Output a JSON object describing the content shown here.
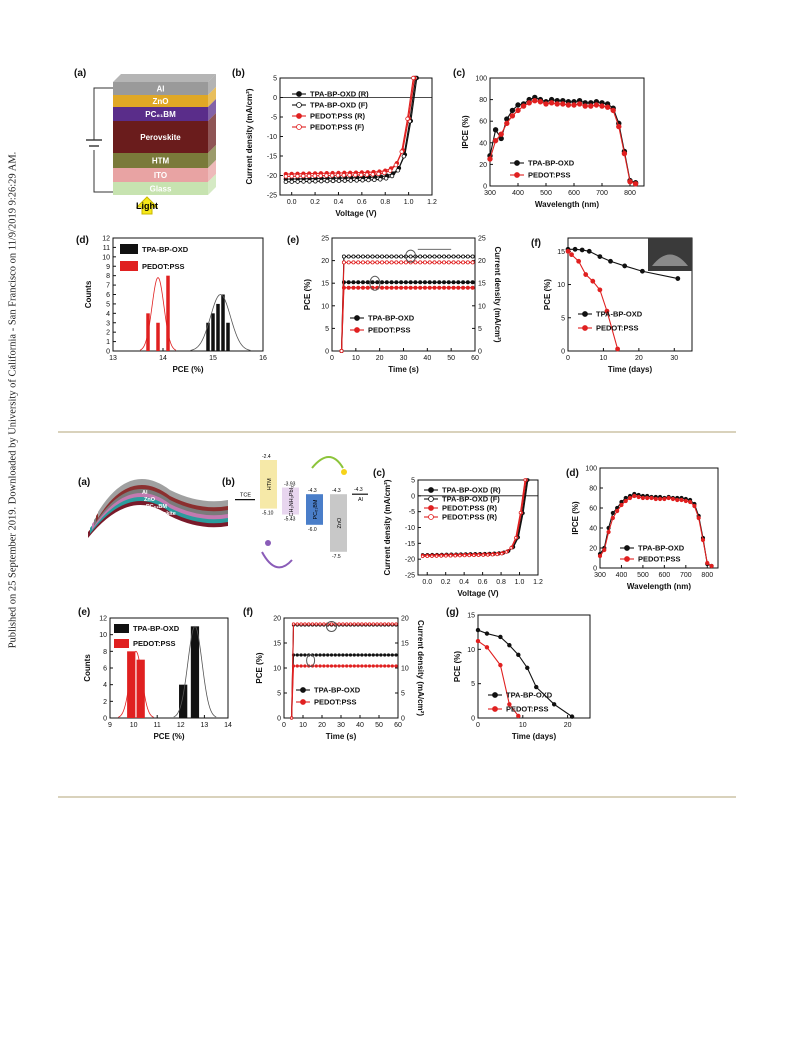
{
  "sidebar_text": "Published on 25 September 2019. Downloaded by University of California - San Francisco on 11/9/2019 9:26:29 AM.",
  "fig1": {
    "a": {
      "label": "(a)",
      "layers": [
        {
          "name": "Al",
          "color": "#9a9a9a"
        },
        {
          "name": "ZnO",
          "color": "#e0a826"
        },
        {
          "name": "PC61BM",
          "color": "#5a2d8a"
        },
        {
          "name": "Perovskite",
          "color": "#6a1c1c"
        },
        {
          "name": "HTM",
          "color": "#7a7a3a"
        },
        {
          "name": "ITO",
          "color": "#e8a3a3"
        },
        {
          "name": "Glass",
          "color": "#c7e3b0"
        }
      ],
      "light": "Light"
    },
    "b": {
      "label": "(b)",
      "chart_data": {
        "type": "line",
        "xlabel": "Voltage (V)",
        "ylabel": "Current density (mA/cm²)",
        "xlim": [
          -0.1,
          1.2
        ],
        "ylim": [
          -25,
          5
        ],
        "xticks": [
          "0.0",
          "0.2",
          "0.4",
          "0.6",
          "0.8",
          "1.0",
          "1.2"
        ],
        "yticks": [
          "5",
          "0",
          "-5",
          "-10",
          "-15",
          "-20",
          "-25"
        ],
        "series": [
          {
            "name": "TPA-BP-OXD (R)",
            "color": "#111111",
            "hollow": false,
            "jsc": 20.9,
            "voc": 1.04
          },
          {
            "name": "TPA-BP-OXD (F)",
            "color": "#111111",
            "hollow": true,
            "jsc": 21.6,
            "voc": 1.03
          },
          {
            "name": "PEDOT:PSS (R)",
            "color": "#e02020",
            "hollow": false,
            "jsc": 19.6,
            "voc": 1.02
          },
          {
            "name": "PEDOT:PSS (F)",
            "color": "#e02020",
            "hollow": true,
            "jsc": 20.2,
            "voc": 1.01
          }
        ]
      }
    },
    "c": {
      "label": "(c)",
      "chart_data": {
        "type": "line",
        "xlabel": "Wavelength (nm)",
        "ylabel": "IPCE (%)",
        "xlim": [
          300,
          850
        ],
        "ylim": [
          0,
          100
        ],
        "xticks": [
          "300",
          "400",
          "500",
          "600",
          "700",
          "800"
        ],
        "yticks": [
          "0",
          "20",
          "40",
          "60",
          "80",
          "100"
        ],
        "series": [
          {
            "name": "TPA-BP-OXD",
            "color": "#111111",
            "x": [
              300,
              320,
              340,
              360,
              380,
              400,
              420,
              440,
              460,
              480,
              500,
              520,
              540,
              560,
              580,
              600,
              620,
              640,
              660,
              680,
              700,
              720,
              740,
              760,
              780,
              800,
              820
            ],
            "y": [
              28,
              52,
              44,
              62,
              70,
              75,
              76,
              80,
              82,
              80,
              78,
              80,
              79,
              79,
              78,
              78,
              79,
              77,
              77,
              78,
              77,
              76,
              72,
              58,
              32,
              5,
              3
            ]
          },
          {
            "name": "PEDOT:PSS",
            "color": "#e02020",
            "x": [
              300,
              320,
              340,
              360,
              380,
              400,
              420,
              440,
              460,
              480,
              500,
              520,
              540,
              560,
              580,
              600,
              620,
              640,
              660,
              680,
              700,
              720,
              740,
              760,
              780,
              800,
              820
            ],
            "y": [
              25,
              42,
              48,
              58,
              65,
              70,
              74,
              77,
              79,
              78,
              76,
              77,
              76,
              76,
              75,
              75,
              76,
              74,
              74,
              75,
              74,
              73,
              70,
              55,
              30,
              4,
              2
            ]
          }
        ]
      }
    },
    "d": {
      "label": "(d)",
      "chart_data": {
        "type": "bar",
        "xlabel": "PCE (%)",
        "ylabel": "Counts",
        "xlim": [
          13,
          16
        ],
        "ylim": [
          0,
          12
        ],
        "xticks": [
          "13",
          "14",
          "15",
          "16"
        ],
        "yticks": [
          "0",
          "1",
          "2",
          "3",
          "4",
          "5",
          "6",
          "7",
          "8",
          "9",
          "10",
          "11",
          "12"
        ],
        "series": [
          {
            "name": "TPA-BP-OXD",
            "color": "#111111",
            "x": [
              14.9,
              15.0,
              15.1,
              15.2,
              15.3
            ],
            "values": [
              3,
              4,
              5,
              6,
              3
            ]
          },
          {
            "name": "PEDOT:PSS",
            "color": "#e02020",
            "x": [
              13.7,
              13.9,
              14.1
            ],
            "values": [
              4,
              3,
              8
            ]
          }
        ]
      }
    },
    "e": {
      "label": "(e)",
      "chart_data": {
        "type": "line",
        "xlabel": "Time (s)",
        "ylabel": "PCE (%)",
        "y2label": "Current density (mA/cm²)",
        "xlim": [
          0,
          60
        ],
        "ylim": [
          0,
          25
        ],
        "xticks": [
          "0",
          "10",
          "20",
          "30",
          "40",
          "50",
          "60"
        ],
        "yticks": [
          "0",
          "5",
          "10",
          "15",
          "20",
          "25"
        ],
        "series": [
          {
            "name": "TPA-BP-OXD",
            "color": "#111111",
            "pce": 15.2,
            "jsc": 20.9
          },
          {
            "name": "PEDOT:PSS",
            "color": "#e02020",
            "pce": 14.0,
            "jsc": 19.6
          }
        ]
      }
    },
    "f": {
      "label": "(f)",
      "chart_data": {
        "type": "line",
        "xlabel": "Time (days)",
        "ylabel": "PCE (%)",
        "xlim": [
          0,
          35
        ],
        "ylim": [
          0,
          17
        ],
        "xticks": [
          "0",
          "10",
          "20",
          "30"
        ],
        "yticks": [
          "0",
          "5",
          "10",
          "15"
        ],
        "series": [
          {
            "name": "TPA-BP-OXD",
            "color": "#111111",
            "x": [
              0,
              2,
              4,
              6,
              9,
              12,
              16,
              21,
              31
            ],
            "y": [
              15.3,
              15.3,
              15.2,
              15.0,
              14.2,
              13.5,
              12.8,
              12.0,
              10.9
            ]
          },
          {
            "name": "PEDOT:PSS",
            "color": "#e02020",
            "x": [
              0,
              1,
              3,
              5,
              7,
              9,
              11,
              14
            ],
            "y": [
              15.0,
              14.5,
              13.5,
              11.5,
              10.5,
              9.2,
              6.0,
              0.3
            ]
          }
        ]
      }
    }
  },
  "fig2": {
    "a": {
      "label": "(a)",
      "layers": [
        "Al",
        "ZnO",
        "PC61BM",
        "Perovskite",
        "HTM",
        "ITO/PET"
      ]
    },
    "b": {
      "label": "(b)",
      "levels": [
        {
          "name": "TCE",
          "value": ""
        },
        {
          "name": "HTM",
          "top": "-2.4",
          "bottom": "-5.10",
          "color": "#f6e9a8"
        },
        {
          "name": "CH3NH3PbI3",
          "top": "-3.93",
          "bottom": "-5.43",
          "color": "#e8d6ef"
        },
        {
          "name": "PC61BM",
          "top": "-4.3",
          "bottom": "-6.0",
          "color": "#4a7ec9"
        },
        {
          "name": "ZnO",
          "top": "-4.3",
          "bottom": "-7.5",
          "color": "#c8c8c8"
        },
        {
          "name": "Al",
          "top": "-4.3",
          "bottom": ""
        }
      ]
    },
    "c": {
      "label": "(c)",
      "chart_data": {
        "type": "line",
        "xlabel": "Voltage (V)",
        "ylabel": "Current density (mA/cm²)",
        "xlim": [
          -0.1,
          1.2
        ],
        "ylim": [
          -25,
          5
        ],
        "xticks": [
          "0.0",
          "0.2",
          "0.4",
          "0.6",
          "0.8",
          "1.0",
          "1.2"
        ],
        "yticks": [
          "5",
          "0",
          "-5",
          "-10",
          "-15",
          "-20",
          "-25"
        ],
        "series": [
          {
            "name": "TPA-BP-OXD (R)",
            "color": "#111111",
            "hollow": false,
            "jsc": 18.6,
            "voc": 1.06
          },
          {
            "name": "TPA-BP-OXD (F)",
            "color": "#111111",
            "hollow": true,
            "jsc": 18.9,
            "voc": 1.05
          },
          {
            "name": "PEDOT:PSS (R)",
            "color": "#e02020",
            "hollow": false,
            "jsc": 18.8,
            "voc": 1.04
          },
          {
            "name": "PEDOT:PSS (R)",
            "color": "#e02020",
            "hollow": true,
            "jsc": 19.1,
            "voc": 1.03
          }
        ]
      }
    },
    "d": {
      "label": "(d)",
      "chart_data": {
        "type": "line",
        "xlabel": "Wavelength (nm)",
        "ylabel": "IPCE (%)",
        "xlim": [
          300,
          850
        ],
        "ylim": [
          0,
          100
        ],
        "xticks": [
          "300",
          "400",
          "500",
          "600",
          "700",
          "800"
        ],
        "yticks": [
          "0",
          "20",
          "40",
          "60",
          "80",
          "100"
        ],
        "series": [
          {
            "name": "TPA-BP-OXD",
            "color": "#111111",
            "x": [
              300,
              320,
              340,
              360,
              380,
              400,
              420,
              440,
              460,
              480,
              500,
              520,
              540,
              560,
              580,
              600,
              620,
              640,
              660,
              680,
              700,
              720,
              740,
              760,
              780,
              800,
              820
            ],
            "y": [
              14,
              20,
              40,
              55,
              60,
              66,
              70,
              72,
              74,
              73,
              72,
              72,
              71,
              71,
              71,
              70,
              71,
              70,
              70,
              70,
              69,
              68,
              64,
              52,
              30,
              4,
              2
            ]
          },
          {
            "name": "PEDOT:PSS",
            "color": "#e02020",
            "x": [
              300,
              320,
              340,
              360,
              380,
              400,
              420,
              440,
              460,
              480,
              500,
              520,
              540,
              560,
              580,
              600,
              620,
              640,
              660,
              680,
              700,
              720,
              740,
              760,
              780,
              800,
              820
            ],
            "y": [
              12,
              18,
              36,
              50,
              57,
              63,
              67,
              70,
              72,
              71,
              70,
              70,
              70,
              69,
              69,
              69,
              70,
              69,
              68,
              68,
              67,
              66,
              62,
              50,
              28,
              5,
              2
            ]
          }
        ]
      }
    },
    "e": {
      "label": "(e)",
      "chart_data": {
        "type": "bar",
        "xlabel": "PCE (%)",
        "ylabel": "Counts",
        "xlim": [
          9,
          14
        ],
        "ylim": [
          0,
          12
        ],
        "xticks": [
          "9",
          "10",
          "11",
          "12",
          "13",
          "14"
        ],
        "yticks": [
          "0",
          "2",
          "4",
          "6",
          "8",
          "10",
          "12"
        ],
        "series": [
          {
            "name": "TPA-BP-OXD",
            "color": "#111111",
            "x": [
              12.1,
              12.6
            ],
            "values": [
              4,
              11
            ]
          },
          {
            "name": "PEDOT:PSS",
            "color": "#e02020",
            "x": [
              9.9,
              10.3
            ],
            "values": [
              8,
              7
            ]
          }
        ]
      }
    },
    "f": {
      "label": "(f)",
      "chart_data": {
        "type": "line",
        "xlabel": "Time (s)",
        "ylabel": "PCE (%)",
        "y2label": "Current density (mA/cm²)",
        "xlim": [
          0,
          60
        ],
        "ylim": [
          0,
          20
        ],
        "xticks": [
          "0",
          "10",
          "20",
          "30",
          "40",
          "50",
          "60"
        ],
        "yticks": [
          "0",
          "5",
          "10",
          "15",
          "20"
        ],
        "series": [
          {
            "name": "TPA-BP-OXD",
            "color": "#111111",
            "pce": 12.6,
            "jsc": 18.6
          },
          {
            "name": "PEDOT:PSS",
            "color": "#e02020",
            "pce": 10.4,
            "jsc": 18.8
          }
        ]
      }
    },
    "g": {
      "label": "(g)",
      "chart_data": {
        "type": "line",
        "xlabel": "Time (days)",
        "ylabel": "PCE (%)",
        "xlim": [
          0,
          25
        ],
        "ylim": [
          0,
          15
        ],
        "xticks": [
          "0",
          "10",
          "20"
        ],
        "yticks": [
          "0",
          "5",
          "10",
          "15"
        ],
        "series": [
          {
            "name": "TPA-BP-OXD",
            "color": "#111111",
            "x": [
              0,
              2,
              5,
              7,
              9,
              11,
              13,
              17,
              21
            ],
            "y": [
              12.8,
              12.3,
              11.8,
              10.6,
              9.2,
              7.3,
              4.5,
              2.0,
              0.2
            ]
          },
          {
            "name": "PEDOT:PSS",
            "color": "#e02020",
            "x": [
              0,
              2,
              5,
              7,
              9
            ],
            "y": [
              11.2,
              10.3,
              7.7,
              2.0,
              0.3
            ]
          }
        ]
      }
    }
  }
}
